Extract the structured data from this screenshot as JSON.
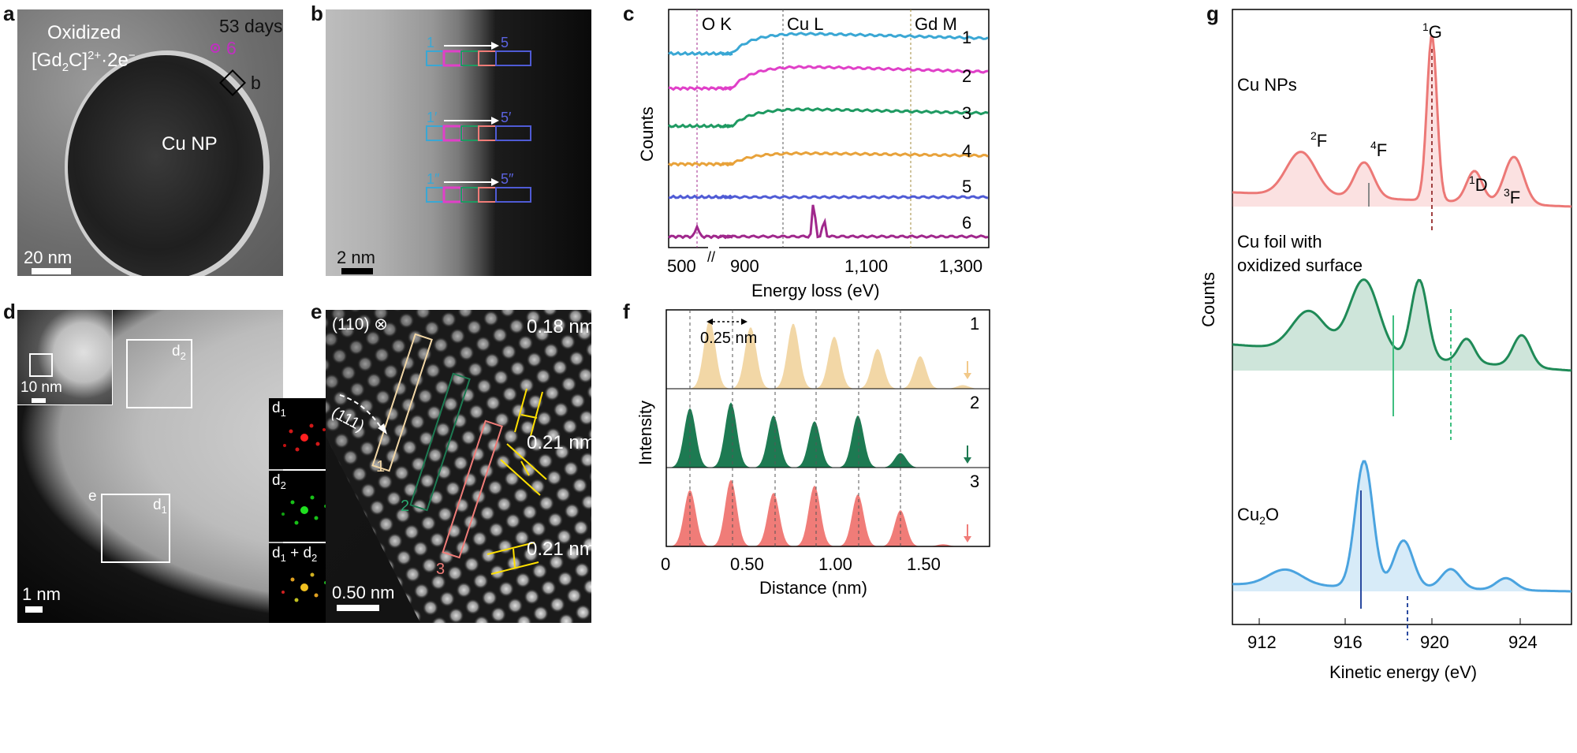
{
  "panels": {
    "a": {
      "letter": "a",
      "label_oxidized": "Oxidized",
      "formula_prefix": "[Gd",
      "formula_sub2": "2",
      "formula_mid": "C]",
      "formula_sup": "2+",
      "formula_suffix": "·2e",
      "formula_minus": "−",
      "days": "53 days",
      "spot": "6",
      "box_label": "b",
      "particle": "Cu NP",
      "scale": "20 nm"
    },
    "b": {
      "letter": "b",
      "rows": [
        {
          "start": "1",
          "end": "5"
        },
        {
          "start": "1′",
          "end": "5′"
        },
        {
          "start": "1″",
          "end": "5″"
        }
      ],
      "scale": "2 nm"
    },
    "c": {
      "letter": "c",
      "edges": [
        "O K",
        "Cu L",
        "Gd M"
      ],
      "spectra": [
        "1",
        "2",
        "3",
        "4",
        "5",
        "6"
      ],
      "ylabel": "Counts",
      "xlabel": "Energy loss (eV)",
      "xticks": [
        "500",
        "900",
        "1,100",
        "1,300"
      ],
      "break_mark": "//"
    },
    "d": {
      "letter": "d",
      "inset_scale": "10 nm",
      "scale": "1 nm",
      "box_d2": "d",
      "box_d2_sub": "2",
      "box_d1": "d",
      "box_d1_sub": "1",
      "box_e": "e",
      "fft": [
        {
          "main": "d",
          "sub": "1",
          "tail": ""
        },
        {
          "main": "d",
          "sub": "2",
          "tail": ""
        },
        {
          "main": "d",
          "sub": "1",
          "tail": " + d",
          "sub2": "2"
        }
      ]
    },
    "e": {
      "letter": "e",
      "zone": "(110)",
      "direction": "(111)",
      "spacings": [
        "0.18 nm",
        "0.21 nm",
        "0.21 nm"
      ],
      "columns": [
        "1",
        "2",
        "3"
      ],
      "scale": "0.50 nm"
    },
    "f": {
      "letter": "f",
      "spacing": "0.25 nm",
      "profiles": [
        "1",
        "2",
        "3"
      ],
      "ylabel": "Intensity",
      "xlabel": "Distance (nm)",
      "xticks": [
        "0",
        "0.50",
        "1.00",
        "1.50"
      ]
    },
    "g": {
      "letter": "g",
      "samples": [
        {
          "name": "Cu NPs"
        },
        {
          "name": "Cu foil with"
        },
        {
          "name": "oxidized surface"
        },
        {
          "name_main": "Cu",
          "name_sub": "2",
          "name_tail": "O"
        }
      ],
      "peaks": [
        {
          "sup": "1",
          "term": "G"
        },
        {
          "sup": "2",
          "term": "F"
        },
        {
          "sup": "4",
          "term": "F"
        },
        {
          "sup": "1",
          "term": "D"
        },
        {
          "sup": "3",
          "term": "F"
        }
      ],
      "ylabel": "Counts",
      "xlabel": "Kinetic energy (eV)",
      "xticks": [
        "912",
        "916",
        "920",
        "924"
      ]
    }
  },
  "colors": {
    "c_series": [
      "#3aa7d4",
      "#e040c8",
      "#1f9a62",
      "#e8a23a",
      "#4f5bd5",
      "#a0288c"
    ],
    "f_series": [
      "#f2d7a6",
      "#1d7a52",
      "#f07c78"
    ],
    "g_series": [
      "#ec7876",
      "#1f8a57",
      "#4aa3df"
    ]
  }
}
